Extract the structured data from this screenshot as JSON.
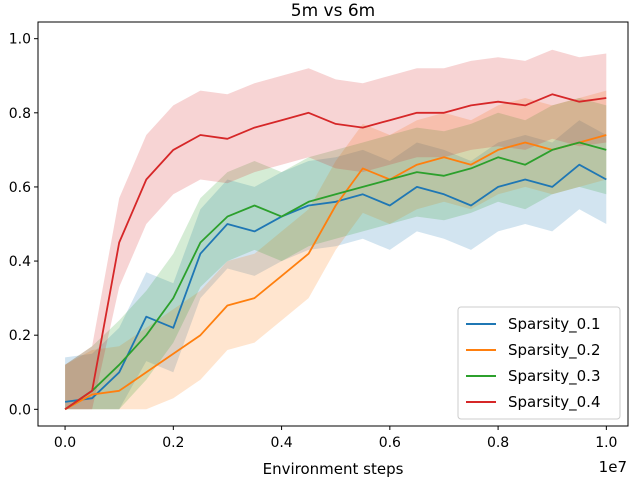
{
  "chart_data": {
    "type": "line",
    "title": "5m vs 6m",
    "xlabel": "Environment steps",
    "ylabel": "",
    "x_offset_label": "1e7",
    "xlim": [
      -0.05,
      1.04
    ],
    "ylim": [
      -0.045,
      1.045
    ],
    "x_ticks": [
      0.0,
      0.2,
      0.4,
      0.6,
      0.8,
      1.0
    ],
    "x_tick_labels": [
      "0.0",
      "0.2",
      "0.4",
      "0.6",
      "0.8",
      "1.0"
    ],
    "y_ticks": [
      0.0,
      0.2,
      0.4,
      0.6,
      0.8,
      1.0
    ],
    "y_tick_labels": [
      "0.0",
      "0.2",
      "0.4",
      "0.6",
      "0.8",
      "1.0"
    ],
    "grid": false,
    "legend_position": "bottom-right",
    "band_spread": 0.12,
    "series": [
      {
        "name": "Sparsity_0.1",
        "color": "#1f77b4",
        "x": [
          0.0,
          0.05,
          0.1,
          0.15,
          0.2,
          0.25,
          0.3,
          0.35,
          0.4,
          0.45,
          0.5,
          0.55,
          0.6,
          0.65,
          0.7,
          0.75,
          0.8,
          0.85,
          0.9,
          0.95,
          1.0
        ],
        "y": [
          0.02,
          0.03,
          0.1,
          0.25,
          0.22,
          0.42,
          0.5,
          0.48,
          0.52,
          0.55,
          0.56,
          0.58,
          0.55,
          0.6,
          0.58,
          0.55,
          0.6,
          0.62,
          0.6,
          0.66,
          0.62
        ]
      },
      {
        "name": "Sparsity_0.2",
        "color": "#ff7f0e",
        "x": [
          0.0,
          0.05,
          0.1,
          0.15,
          0.2,
          0.25,
          0.3,
          0.35,
          0.4,
          0.45,
          0.5,
          0.55,
          0.6,
          0.65,
          0.7,
          0.75,
          0.8,
          0.85,
          0.9,
          0.95,
          1.0
        ],
        "y": [
          0.0,
          0.04,
          0.05,
          0.1,
          0.15,
          0.2,
          0.28,
          0.3,
          0.36,
          0.42,
          0.55,
          0.65,
          0.62,
          0.66,
          0.68,
          0.66,
          0.7,
          0.72,
          0.7,
          0.72,
          0.74
        ]
      },
      {
        "name": "Sparsity_0.3",
        "color": "#2ca02c",
        "x": [
          0.0,
          0.05,
          0.1,
          0.15,
          0.2,
          0.25,
          0.3,
          0.35,
          0.4,
          0.45,
          0.5,
          0.55,
          0.6,
          0.65,
          0.7,
          0.75,
          0.8,
          0.85,
          0.9,
          0.95,
          1.0
        ],
        "y": [
          0.0,
          0.05,
          0.12,
          0.2,
          0.3,
          0.45,
          0.52,
          0.55,
          0.52,
          0.56,
          0.58,
          0.6,
          0.62,
          0.64,
          0.63,
          0.65,
          0.68,
          0.66,
          0.7,
          0.72,
          0.7
        ]
      },
      {
        "name": "Sparsity_0.4",
        "color": "#d62728",
        "x": [
          0.0,
          0.05,
          0.1,
          0.15,
          0.2,
          0.25,
          0.3,
          0.35,
          0.4,
          0.45,
          0.5,
          0.55,
          0.6,
          0.65,
          0.7,
          0.75,
          0.8,
          0.85,
          0.9,
          0.95,
          1.0
        ],
        "y": [
          0.0,
          0.05,
          0.45,
          0.62,
          0.7,
          0.74,
          0.73,
          0.76,
          0.78,
          0.8,
          0.77,
          0.76,
          0.78,
          0.8,
          0.8,
          0.82,
          0.83,
          0.82,
          0.85,
          0.83,
          0.84
        ]
      }
    ]
  }
}
